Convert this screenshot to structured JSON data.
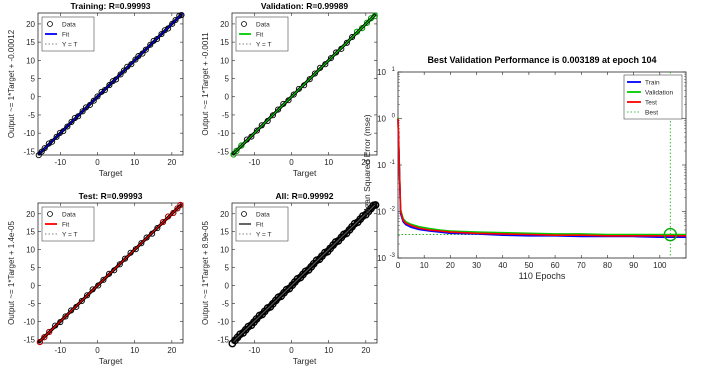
{
  "chart_data": [
    {
      "type": "scatter",
      "title": "Training: R=0.99993",
      "xlabel": "Target",
      "ylabel": "Output ~= 1*Target + -0.00012",
      "xlim": [
        -16,
        23
      ],
      "ylim": [
        -16,
        23
      ],
      "xticks": [
        -10,
        0,
        10,
        20
      ],
      "yticks": [
        -15,
        -10,
        -5,
        0,
        5,
        10,
        15,
        20
      ],
      "fit_color": "#0000ff",
      "marker_edge_color": "#000000",
      "legend": {
        "placement": "top-left",
        "entries": [
          "Data",
          "Fit",
          "Y = T"
        ]
      },
      "series": [
        {
          "name": "Data",
          "kind": "points",
          "x": [
            -15.8,
            -15,
            -14.2,
            -13.1,
            -12.2,
            -11.0,
            -10.1,
            -9.2,
            -8.1,
            -7.0,
            -6.1,
            -5.2,
            -4.0,
            -3.1,
            -2.0,
            -1.0,
            0,
            1.1,
            2.0,
            3.2,
            4.1,
            5.0,
            6.2,
            7.1,
            8.0,
            9.1,
            10.2,
            11.0,
            12.1,
            13.0,
            14.2,
            15.1,
            16.0,
            17.2,
            18.1,
            19.0,
            20.1,
            21.0,
            22.0,
            22.6
          ]
        },
        {
          "name": "Fit",
          "kind": "line",
          "x": [
            -16,
            23
          ],
          "y": [
            -16.0001,
            22.9999
          ]
        },
        {
          "name": "Y = T",
          "kind": "dotted-line",
          "x": [
            -16,
            23
          ],
          "y": [
            -16,
            23
          ]
        }
      ]
    },
    {
      "type": "scatter",
      "title": "Validation: R=0.99989",
      "xlabel": "Target",
      "ylabel": "Output ~= 1*Target + -0.0011",
      "xlim": [
        -16,
        23
      ],
      "ylim": [
        -16,
        23
      ],
      "xticks": [
        -10,
        0,
        10,
        20
      ],
      "yticks": [
        -15,
        -10,
        -5,
        0,
        5,
        10,
        15,
        20
      ],
      "fit_color": "#00cc00",
      "marker_edge_color": "#000000",
      "highlight_color": "#00bb00",
      "legend": {
        "placement": "top-left",
        "entries": [
          "Data",
          "Fit",
          "Y = T"
        ]
      },
      "series": [
        {
          "name": "Data",
          "kind": "points",
          "x": [
            -15.6,
            -14.8,
            -13.5,
            -12.0,
            -10.8,
            -9.3,
            -8.0,
            -6.4,
            -5.0,
            -3.6,
            -2.2,
            -0.8,
            0.6,
            2.0,
            3.4,
            4.9,
            6.3,
            7.7,
            9.1,
            10.6,
            12.0,
            13.4,
            14.9,
            16.3,
            17.6,
            19.0,
            20.3,
            21.4,
            22.4
          ]
        },
        {
          "name": "Fit",
          "kind": "line",
          "x": [
            -16,
            23
          ],
          "y": [
            -16.001,
            22.999
          ]
        },
        {
          "name": "Y = T",
          "kind": "dotted-line",
          "x": [
            -16,
            23
          ],
          "y": [
            -16,
            23
          ]
        }
      ]
    },
    {
      "type": "scatter",
      "title": "Test: R=0.99993",
      "xlabel": "Target",
      "ylabel": "Output ~= 1*Target + 1.4e-05",
      "xlim": [
        -16,
        23
      ],
      "ylim": [
        -16,
        23
      ],
      "xticks": [
        -10,
        0,
        10,
        20
      ],
      "yticks": [
        -15,
        -10,
        -5,
        0,
        5,
        10,
        15,
        20
      ],
      "fit_color": "#ff0000",
      "marker_edge_color": "#000000",
      "highlight_color": "#cc0000",
      "legend": {
        "placement": "top-left",
        "entries": [
          "Data",
          "Fit",
          "Y = T"
        ]
      },
      "series": [
        {
          "name": "Data",
          "kind": "points",
          "x": [
            -15.5,
            -14.3,
            -13.0,
            -11.4,
            -10.0,
            -8.6,
            -7.1,
            -5.7,
            -4.2,
            -2.8,
            -1.3,
            0.2,
            1.6,
            3.1,
            4.5,
            6.0,
            7.4,
            8.9,
            10.3,
            11.8,
            13.2,
            14.7,
            16.1,
            17.6,
            19.0,
            20.4,
            21.5,
            22.3
          ]
        },
        {
          "name": "Fit",
          "kind": "line",
          "x": [
            -16,
            23
          ],
          "y": [
            -15.99999,
            23.00001
          ]
        },
        {
          "name": "Y = T",
          "kind": "dotted-line",
          "x": [
            -16,
            23
          ],
          "y": [
            -16,
            23
          ]
        }
      ]
    },
    {
      "type": "scatter",
      "title": "All: R=0.99992",
      "xlabel": "Target",
      "ylabel": "Output ~= 1*Target + 8.9e-05",
      "xlim": [
        -16,
        23
      ],
      "ylim": [
        -16,
        23
      ],
      "xticks": [
        -10,
        0,
        10,
        20
      ],
      "yticks": [
        -15,
        -10,
        -5,
        0,
        5,
        10,
        15,
        20
      ],
      "fit_color": "#555555",
      "marker_edge_color": "#000000",
      "legend": {
        "placement": "top-left",
        "entries": [
          "Data",
          "Fit",
          "Y = T"
        ]
      },
      "series": [
        {
          "name": "Data",
          "kind": "points",
          "x": [
            -15.9,
            -15.2,
            -14.5,
            -13.8,
            -13.0,
            -12.3,
            -11.6,
            -10.8,
            -10.1,
            -9.4,
            -8.6,
            -7.9,
            -7.2,
            -6.4,
            -5.7,
            -5.0,
            -4.2,
            -3.5,
            -2.8,
            -2.0,
            -1.3,
            -0.6,
            0.2,
            0.9,
            1.6,
            2.4,
            3.1,
            3.8,
            4.6,
            5.3,
            6.0,
            6.8,
            7.5,
            8.2,
            9.0,
            9.7,
            10.4,
            11.2,
            11.9,
            12.6,
            13.4,
            14.1,
            14.8,
            15.6,
            16.3,
            17.0,
            17.8,
            18.5,
            19.2,
            20.0,
            20.7,
            21.4,
            22.1,
            22.6
          ]
        },
        {
          "name": "Fit",
          "kind": "line",
          "x": [
            -16,
            23
          ],
          "y": [
            -15.9999,
            23.0001
          ]
        },
        {
          "name": "Y = T",
          "kind": "dotted-line",
          "x": [
            -16,
            23
          ],
          "y": [
            -16,
            23
          ]
        }
      ]
    },
    {
      "type": "line",
      "title": "Best Validation Performance is 0.003189 at epoch 104",
      "xlabel": "110 Epochs",
      "ylabel": "Mean Squared Error  (mse)",
      "xlim": [
        0,
        110
      ],
      "ylim": [
        0.001,
        10
      ],
      "yscale": "log",
      "xticks": [
        0,
        10,
        20,
        30,
        40,
        50,
        60,
        70,
        80,
        90,
        100
      ],
      "yticks": [
        0.001,
        0.01,
        0.1,
        1,
        10
      ],
      "ytick_labels": [
        {
          "base": "10",
          "exp": "-3"
        },
        {
          "base": "10",
          "exp": "-2"
        },
        {
          "base": "10",
          "exp": "-1"
        },
        {
          "base": "10",
          "exp": "0"
        },
        {
          "base": "10",
          "exp": "1"
        }
      ],
      "legend": {
        "placement": "top-right",
        "entries": [
          "Train",
          "Validation",
          "Test",
          "Best"
        ]
      },
      "best": {
        "epoch": 104,
        "value": 0.003189,
        "color": "#00aa00"
      },
      "series": [
        {
          "name": "Train",
          "color": "#0000ff",
          "x": [
            0,
            1,
            2,
            3,
            5,
            8,
            12,
            16,
            20,
            30,
            40,
            50,
            60,
            70,
            80,
            90,
            100,
            104,
            110
          ],
          "y": [
            0.95,
            0.009,
            0.006,
            0.0052,
            0.0046,
            0.0041,
            0.0038,
            0.0036,
            0.0034,
            0.0033,
            0.0031,
            0.003,
            0.003,
            0.0029,
            0.0029,
            0.0029,
            0.0028,
            0.0028,
            0.0028
          ]
        },
        {
          "name": "Validation",
          "color": "#00cc00",
          "x": [
            0,
            1,
            2,
            3,
            5,
            8,
            12,
            16,
            20,
            30,
            40,
            50,
            60,
            70,
            80,
            90,
            100,
            104,
            110
          ],
          "y": [
            1.05,
            0.011,
            0.007,
            0.006,
            0.0053,
            0.0047,
            0.0043,
            0.004,
            0.0038,
            0.0036,
            0.0035,
            0.0034,
            0.0033,
            0.0033,
            0.0032,
            0.0032,
            0.0032,
            0.003189,
            0.0032
          ]
        },
        {
          "name": "Test",
          "color": "#ff0000",
          "x": [
            0,
            1,
            2,
            3,
            5,
            8,
            12,
            16,
            20,
            30,
            40,
            50,
            60,
            70,
            80,
            90,
            100,
            104,
            110
          ],
          "y": [
            1.0,
            0.01,
            0.0065,
            0.0056,
            0.005,
            0.0044,
            0.004,
            0.0038,
            0.0036,
            0.0034,
            0.0033,
            0.0032,
            0.0031,
            0.0031,
            0.003,
            0.003,
            0.003,
            0.003,
            0.003
          ]
        }
      ]
    }
  ]
}
